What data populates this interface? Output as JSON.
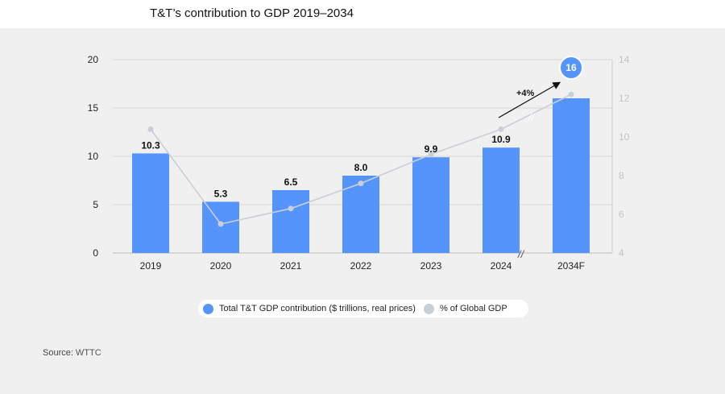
{
  "page": {
    "source_label": "Source:",
    "source_text": "WTTC"
  },
  "chart_data": {
    "type": "bar",
    "title": "T&T’s contribution to GDP 2019–2034",
    "categories": [
      "2019",
      "2020",
      "2021",
      "2022",
      "2023",
      "2024",
      "2034F"
    ],
    "series": [
      {
        "name": "Total T&T GDP contribution ($ trillions, real prices)",
        "axis": "left",
        "type": "bar",
        "values": [
          10.3,
          5.3,
          6.5,
          8.0,
          9.9,
          10.9,
          16
        ],
        "labels": [
          "10.3",
          "5.3",
          "6.5",
          "8.0",
          "9.9",
          "10.9",
          "16"
        ],
        "color": "#5595fb"
      },
      {
        "name": "% of Global GDP",
        "axis": "right",
        "type": "line",
        "values": [
          10.4,
          5.5,
          6.3,
          7.6,
          9.1,
          10.4,
          12.2
        ],
        "color": "#c9cfd6"
      }
    ],
    "left_axis": {
      "min": 0,
      "max": 20,
      "ticks": [
        "0",
        "5",
        "10",
        "15",
        "20"
      ]
    },
    "right_axis": {
      "min": 4,
      "max": 14,
      "ticks": [
        "4",
        "6",
        "8",
        "10",
        "12",
        "14"
      ]
    },
    "annotation": {
      "text": "+4%"
    },
    "axis_break_symbol": "//",
    "grid": true,
    "legend_position": "bottom"
  }
}
